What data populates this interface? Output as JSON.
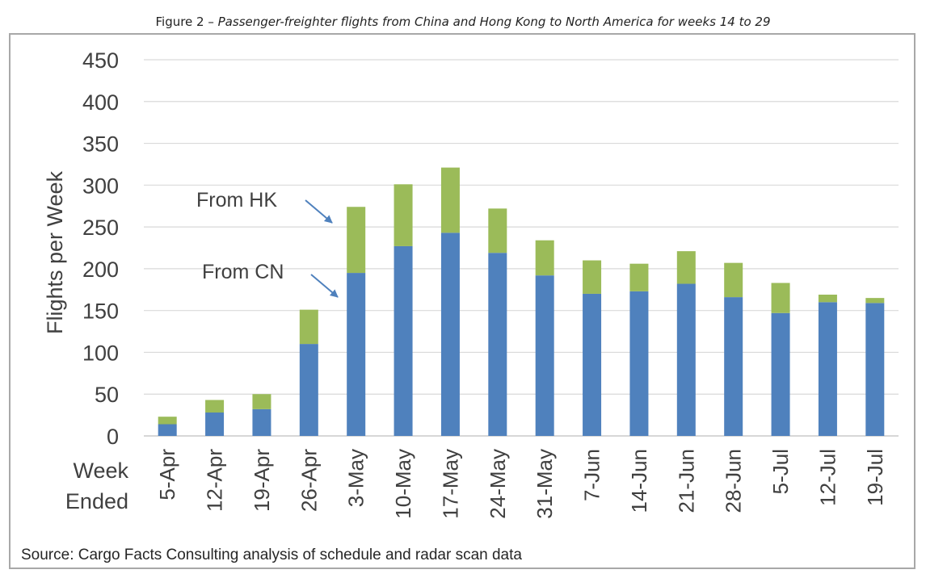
{
  "figure": {
    "label": "Figure 2 – ",
    "subtitle": "Passenger-freighter flights from China and Hong Kong to North America for weeks 14 to 29"
  },
  "source": "Source: Cargo Facts Consulting analysis of schedule and radar scan data",
  "colors": {
    "cn": "#4f81bd",
    "hk": "#9bbb59",
    "grid": "#d9d9d9",
    "text": "#404040"
  },
  "annotations": {
    "hk": "From HK",
    "cn": "From CN"
  },
  "chart_data": {
    "type": "bar",
    "stacked": true,
    "ylabel": "Flights per Week",
    "xlabel": "Week\nEnded",
    "ylim": [
      0,
      450
    ],
    "yticks": [
      0,
      50,
      100,
      150,
      200,
      250,
      300,
      350,
      400,
      450
    ],
    "grid": true,
    "categories": [
      "5-Apr",
      "12-Apr",
      "19-Apr",
      "26-Apr",
      "3-May",
      "10-May",
      "17-May",
      "24-May",
      "31-May",
      "7-Jun",
      "14-Jun",
      "21-Jun",
      "28-Jun",
      "5-Jul",
      "12-Jul",
      "19-Jul"
    ],
    "series": [
      {
        "key": "cn",
        "values": [
          14,
          28,
          32,
          110,
          195,
          227,
          243,
          219,
          192,
          170,
          173,
          182,
          166,
          147,
          160,
          159
        ]
      },
      {
        "key": "hk",
        "values": [
          9,
          15,
          18,
          41,
          79,
          74,
          78,
          53,
          42,
          40,
          33,
          39,
          41,
          36,
          9,
          6
        ]
      }
    ]
  }
}
